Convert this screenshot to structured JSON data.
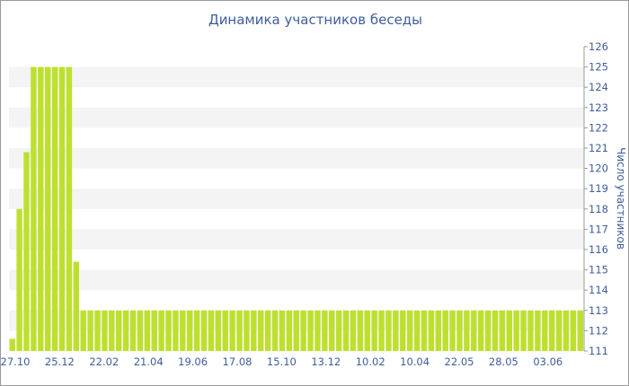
{
  "chart_data": {
    "type": "bar",
    "title": "Динамика участников беседы",
    "xlabel": "",
    "ylabel": "Число участников",
    "ylim": [
      111,
      126
    ],
    "y_axis_side": "right",
    "y_ticks": [
      "111",
      "112",
      "113",
      "114",
      "115",
      "116",
      "117",
      "118",
      "119",
      "120",
      "121",
      "122",
      "123",
      "124",
      "125",
      "126"
    ],
    "x_tick_labels": [
      "27.10",
      "25.12",
      "22.02",
      "21.04",
      "19.06",
      "17.08",
      "15.10",
      "13.12",
      "10.02",
      "10.04",
      "22.05",
      "28.05",
      "03.06"
    ],
    "grid": "alternating horizontal bands",
    "bar_color": "#bde02f",
    "band_color": "#f4f4f4",
    "text_color": "#3e5d9b",
    "values": [
      111.6,
      118,
      120.8,
      125,
      125,
      125,
      125,
      125,
      125,
      115.4,
      113,
      113,
      113,
      113,
      113,
      113,
      113,
      113,
      113,
      113,
      113,
      113,
      113,
      113,
      113,
      113,
      113,
      113,
      113,
      113,
      113,
      113,
      113,
      113,
      113,
      113,
      113,
      113,
      113,
      113,
      113,
      113,
      113,
      113,
      113,
      113,
      113,
      113,
      113,
      113,
      113,
      113,
      113,
      113,
      113,
      113,
      113,
      113,
      113,
      113,
      113,
      113,
      113,
      113,
      113,
      113,
      113,
      113,
      113,
      113,
      113,
      113,
      113,
      113,
      113,
      113,
      113,
      113,
      113,
      113,
      113
    ]
  }
}
